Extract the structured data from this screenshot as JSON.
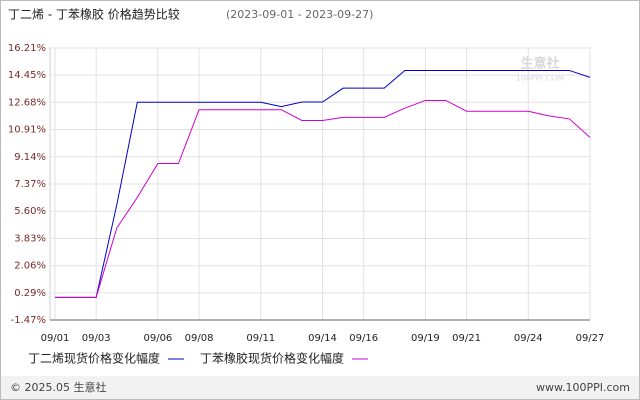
{
  "chart_data": {
    "type": "line",
    "title": "丁二烯 - 丁苯橡胶 价格趋势比较",
    "subtitle": "(2023-09-01 - 2023-09-27)",
    "categories": [
      "09/01",
      null,
      "09/03",
      null,
      null,
      "09/06",
      null,
      "09/08",
      null,
      null,
      "09/11",
      null,
      null,
      "09/14",
      null,
      "09/16",
      null,
      null,
      "09/19",
      null,
      "09/21",
      null,
      null,
      "09/24",
      null,
      null,
      "09/27"
    ],
    "series": [
      {
        "name": "丁二烯现货价格变化幅度",
        "color": "#0000cc",
        "values": [
          0,
          0,
          0,
          6,
          12.68,
          12.68,
          12.68,
          12.68,
          12.68,
          12.68,
          12.68,
          12.4,
          12.7,
          12.7,
          13.6,
          13.6,
          13.6,
          14.75,
          14.75,
          14.75,
          14.75,
          14.75,
          14.75,
          14.75,
          14.75,
          14.75,
          14.3
        ]
      },
      {
        "name": "丁苯橡胶现货价格变化幅度",
        "color": "#cc00cc",
        "values": [
          0,
          0,
          0,
          4.5,
          6.5,
          8.7,
          8.7,
          12.2,
          12.2,
          12.2,
          12.2,
          12.2,
          11.5,
          11.5,
          11.7,
          11.7,
          11.7,
          12.3,
          12.8,
          12.8,
          12.1,
          12.1,
          12.1,
          12.1,
          11.8,
          11.6,
          10.4
        ]
      }
    ],
    "ylim": [
      -1.47,
      16.21
    ],
    "yticks": [
      {
        "value": 16.21,
        "label": "16.21%"
      },
      {
        "value": 14.45,
        "label": "14.45%"
      },
      {
        "value": 12.68,
        "label": "12.68%"
      },
      {
        "value": 10.91,
        "label": "10.91%"
      },
      {
        "value": 9.14,
        "label": "9.14%"
      },
      {
        "value": 7.37,
        "label": "7.37%"
      },
      {
        "value": 5.6,
        "label": "5.60%"
      },
      {
        "value": 3.83,
        "label": "3.83%"
      },
      {
        "value": 2.06,
        "label": "2.06%"
      },
      {
        "value": 0.29,
        "label": "0.29%"
      },
      {
        "value": -1.47,
        "label": "-1.47%"
      }
    ],
    "grid": true,
    "watermark": {
      "name": "生意社",
      "site": "100PPI.COM"
    },
    "footer": {
      "left": "© 2025.05 生意社",
      "right": "www.100PPI.com"
    }
  }
}
